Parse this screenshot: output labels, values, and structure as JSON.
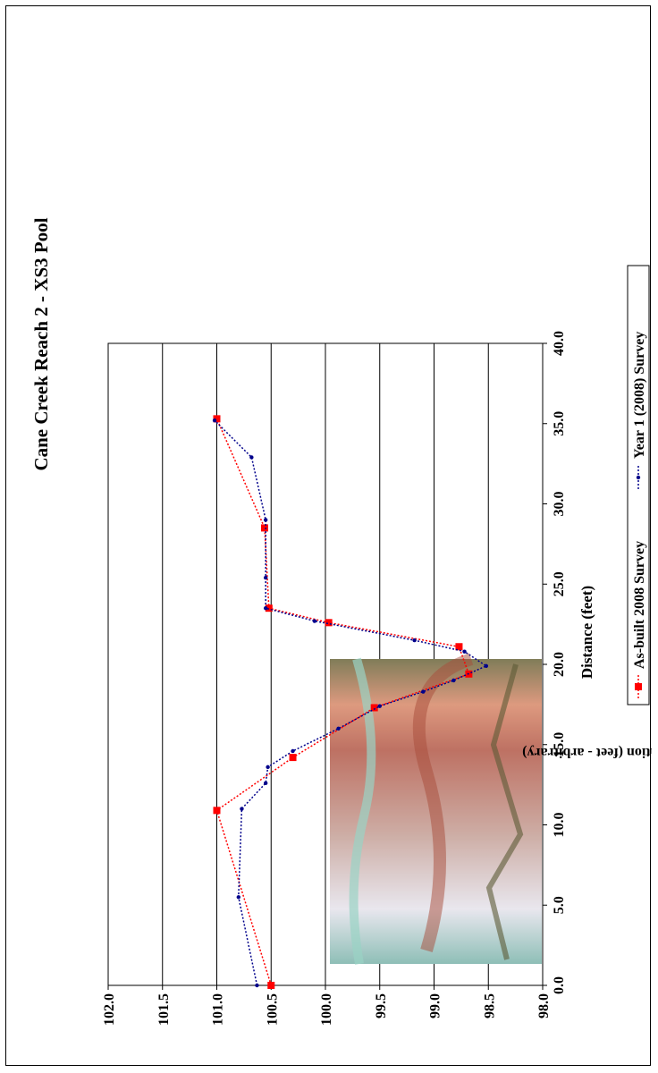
{
  "chart_data": {
    "type": "line",
    "orientation": "rotated-90-clockwise",
    "title": "Cane Creek Reach 2 - XS3 Pool",
    "xlabel": "Distance (feet)",
    "ylabel": "Elevation (feet - arbitrary)",
    "xlim": [
      0,
      40
    ],
    "ylim": [
      98,
      102
    ],
    "x_ticks": [
      "0.0",
      "5.0",
      "10.0",
      "15.0",
      "20.0",
      "25.0",
      "30.0",
      "35.0",
      "40.0"
    ],
    "y_ticks": [
      "98.0",
      "98.5",
      "99.0",
      "99.5",
      "100.0",
      "100.5",
      "101.0",
      "101.5",
      "102.0"
    ],
    "grid": "horizontal major gridlines",
    "legend_position": "bottom",
    "series": [
      {
        "name": "As-built 2008 Survey",
        "color": "#ff0000",
        "marker": "square",
        "line_style": "dotted",
        "points": [
          {
            "x": 0.0,
            "y": 100.5
          },
          {
            "x": 10.9,
            "y": 101.0
          },
          {
            "x": 14.2,
            "y": 100.3
          },
          {
            "x": 17.3,
            "y": 99.55
          },
          {
            "x": 19.4,
            "y": 98.68
          },
          {
            "x": 21.1,
            "y": 98.77
          },
          {
            "x": 22.6,
            "y": 99.97
          },
          {
            "x": 23.5,
            "y": 100.52
          },
          {
            "x": 28.5,
            "y": 100.56
          },
          {
            "x": 35.3,
            "y": 101.0
          }
        ]
      },
      {
        "name": "Year 1 (2008) Survey",
        "color": "#00008b",
        "marker": "diamond",
        "line_style": "dotted",
        "points": [
          {
            "x": 0.0,
            "y": 100.63
          },
          {
            "x": 5.5,
            "y": 100.8
          },
          {
            "x": 11.0,
            "y": 100.77
          },
          {
            "x": 12.6,
            "y": 100.55
          },
          {
            "x": 13.6,
            "y": 100.53
          },
          {
            "x": 14.6,
            "y": 100.3
          },
          {
            "x": 16.0,
            "y": 99.88
          },
          {
            "x": 17.4,
            "y": 99.5
          },
          {
            "x": 18.3,
            "y": 99.1
          },
          {
            "x": 19.0,
            "y": 98.82
          },
          {
            "x": 19.9,
            "y": 98.52
          },
          {
            "x": 20.8,
            "y": 98.72
          },
          {
            "x": 21.5,
            "y": 99.18
          },
          {
            "x": 22.7,
            "y": 100.1
          },
          {
            "x": 23.5,
            "y": 100.55
          },
          {
            "x": 25.4,
            "y": 100.55
          },
          {
            "x": 29.0,
            "y": 100.55
          },
          {
            "x": 32.9,
            "y": 100.68
          },
          {
            "x": 35.2,
            "y": 101.02
          }
        ]
      }
    ]
  },
  "photo": {
    "name": "stream-pool-photo",
    "colors": [
      "#7fb6ad",
      "#e6e4ec",
      "#c7a39a",
      "#b55e4e",
      "#d98c6e",
      "#6f6b42"
    ]
  }
}
